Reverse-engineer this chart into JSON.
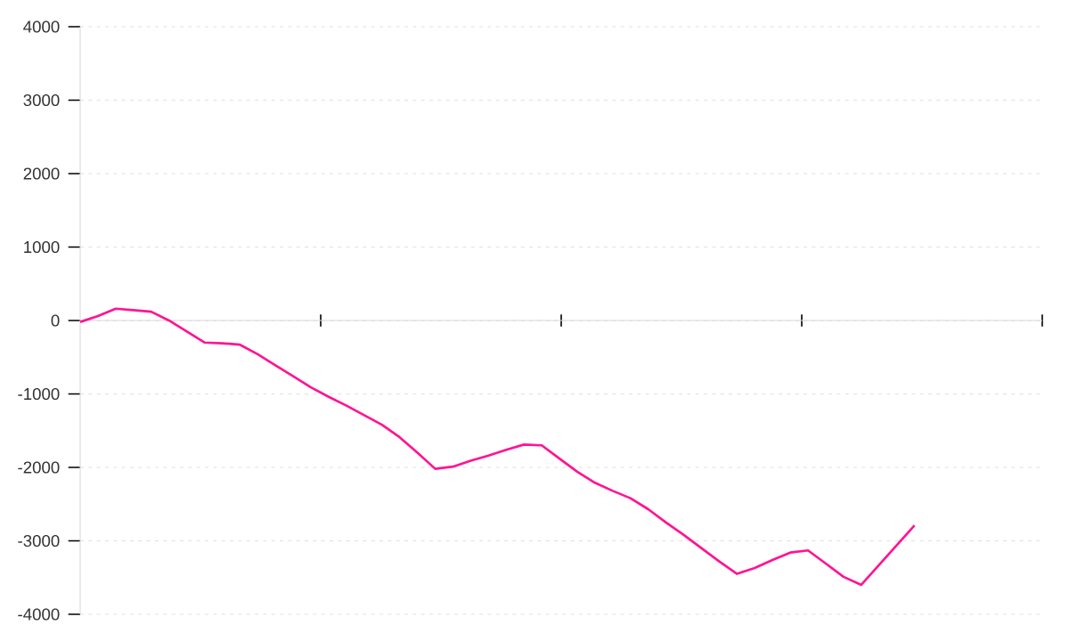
{
  "chart_data": {
    "type": "line",
    "categories": [
      null,
      null,
      null,
      null,
      null,
      null,
      null,
      null,
      null,
      null,
      null,
      null,
      null,
      null,
      null,
      null,
      null,
      null,
      null,
      null,
      null,
      null,
      null,
      null,
      null,
      null,
      null,
      null,
      null,
      null,
      null,
      null,
      null,
      null,
      null,
      null,
      null,
      null,
      null,
      null,
      null,
      null,
      null,
      null,
      null,
      null,
      null,
      null
    ],
    "values": [
      -20,
      60,
      160,
      140,
      120,
      0,
      -150,
      -300,
      -310,
      -330,
      -460,
      -610,
      -760,
      -910,
      -1040,
      -1160,
      -1290,
      -1420,
      -1590,
      -1800,
      -2020,
      -1990,
      -1910,
      -1840,
      -1760,
      -1690,
      -1700,
      -1880,
      -2060,
      -2210,
      -2320,
      -2420,
      -2570,
      -2750,
      -2920,
      -3100,
      -3280,
      -3450,
      -3370,
      -3260,
      -3160,
      -3130,
      -3310,
      -3490,
      -3600,
      -3330,
      -3060,
      -2790
    ],
    "color": "#ff1493",
    "ylim": [
      -4000,
      4000
    ],
    "yticks": [
      -4000,
      -3000,
      -2000,
      -1000,
      0,
      1000,
      2000,
      3000,
      4000
    ],
    "grid": "y",
    "tick_labels": "y",
    "marker": "none",
    "line_style": "solid"
  }
}
